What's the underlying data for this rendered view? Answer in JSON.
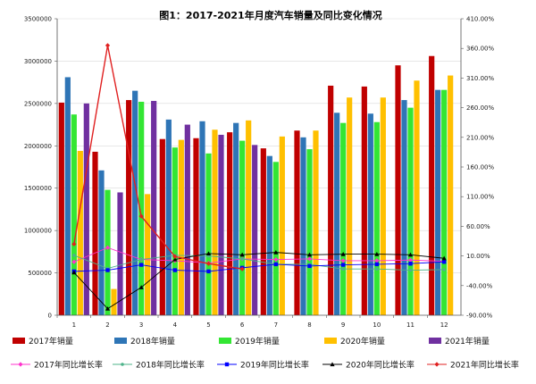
{
  "chart_data": {
    "type": "bar",
    "title": "图1：2017-2021年月度汽车销量及同比变化情况",
    "categories": [
      "1",
      "2",
      "3",
      "4",
      "5",
      "6",
      "7",
      "8",
      "9",
      "10",
      "11",
      "12"
    ],
    "left_axis": {
      "min": 0,
      "max": 3500000,
      "ticks": [
        0,
        500000,
        1000000,
        1500000,
        2000000,
        2500000,
        3000000,
        3500000
      ],
      "tick_labels": [
        "0",
        "500000",
        "1000000",
        "1500000",
        "2000000",
        "2500000",
        "3000000",
        "3500000"
      ]
    },
    "right_axis": {
      "min": -90,
      "max": 410,
      "ticks": [
        -90,
        -40,
        10,
        60,
        110,
        160,
        210,
        260,
        310,
        360,
        410
      ],
      "tick_labels": [
        "-90.00%",
        "-40.00%",
        "10.00%",
        "60.00%",
        "110.00%",
        "160.00%",
        "210.00%",
        "260.00%",
        "310.00%",
        "360.00%",
        "410.00%"
      ]
    },
    "bar_series": [
      {
        "name": "2017年销量",
        "color": "#c00000",
        "values": [
          2510000,
          1930000,
          2540000,
          2080000,
          2090000,
          2160000,
          1970000,
          2180000,
          2710000,
          2700000,
          2950000,
          3060000
        ]
      },
      {
        "name": "2018年销量",
        "color": "#2e75b6",
        "values": [
          2810000,
          1710000,
          2650000,
          2310000,
          2290000,
          2270000,
          1880000,
          2100000,
          2390000,
          2380000,
          2540000,
          2660000
        ]
      },
      {
        "name": "2019年销量",
        "color": "#33e633",
        "values": [
          2370000,
          1480000,
          2520000,
          1980000,
          1910000,
          2060000,
          1810000,
          1960000,
          2270000,
          2280000,
          2450000,
          2660000
        ]
      },
      {
        "name": "2020年销量",
        "color": "#ffc000",
        "values": [
          1940000,
          310000,
          1430000,
          2070000,
          2190000,
          2300000,
          2110000,
          2180000,
          2570000,
          2570000,
          2770000,
          2830000
        ]
      },
      {
        "name": "2021年销量",
        "color": "#7030a0",
        "values": [
          2500000,
          1450000,
          2530000,
          2250000,
          2130000,
          2010000,
          null,
          null,
          null,
          null,
          null,
          null
        ]
      }
    ],
    "line_series": [
      {
        "name": "2017年同比增长率",
        "color": "#ff33cc",
        "marker": "diamond",
        "values": [
          0,
          24,
          4,
          2,
          -2,
          5,
          4,
          5,
          2,
          2,
          3,
          1
        ]
      },
      {
        "name": "2018年同比增长率",
        "color": "#4db38a",
        "marker": "dot",
        "values": [
          11,
          -11,
          4,
          11,
          10,
          5,
          -4,
          -4,
          -12,
          -12,
          -14,
          -13
        ]
      },
      {
        "name": "2019年同比增长率",
        "color": "#0000ff",
        "marker": "square",
        "values": [
          -16,
          -14,
          -5,
          -14,
          -16,
          -10,
          -4,
          -7,
          -5,
          -4,
          -3,
          0
        ]
      },
      {
        "name": "2020年同比增长率",
        "color": "#000000",
        "marker": "triangle",
        "values": [
          -18,
          -79,
          -43,
          4,
          14,
          12,
          16,
          12,
          13,
          13,
          12,
          6
        ]
      },
      {
        "name": "2021年同比增长率",
        "color": "#e02020",
        "marker": "diamond",
        "values": [
          30,
          365,
          77,
          9,
          -3,
          -12,
          null,
          null,
          null,
          null,
          null,
          null
        ]
      }
    ]
  }
}
